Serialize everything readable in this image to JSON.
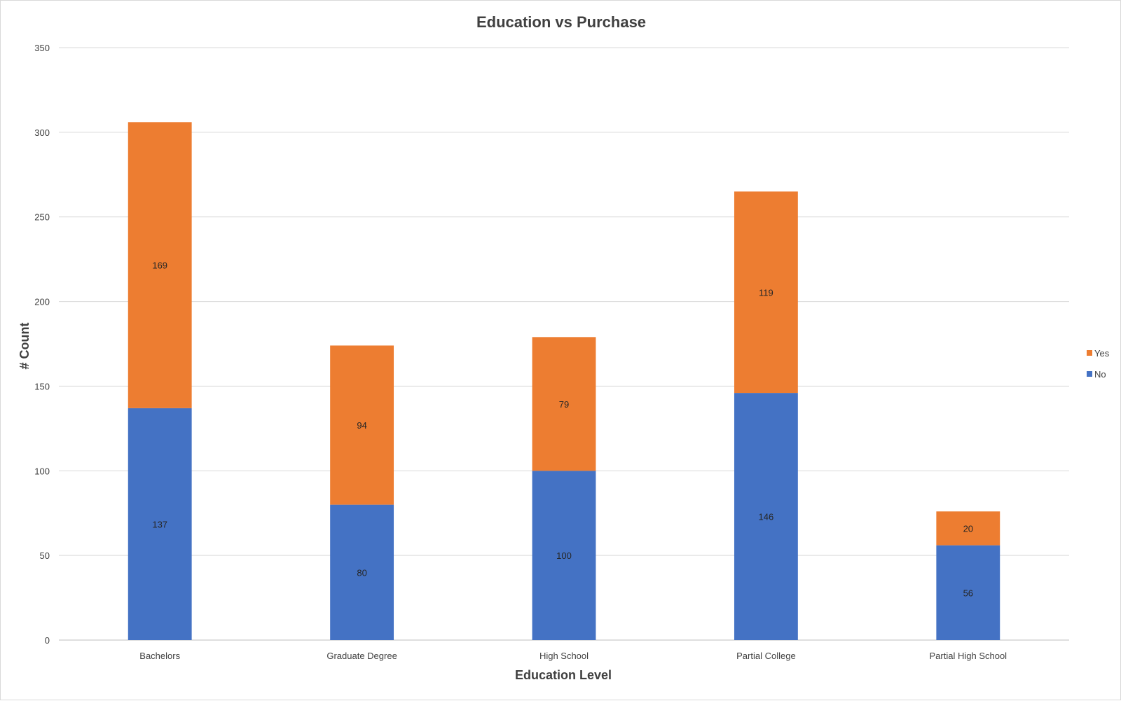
{
  "chart_data": {
    "type": "bar",
    "stacked": true,
    "title": "Education vs Purchase",
    "xlabel": "Education Level",
    "ylabel": "# Count",
    "categories": [
      "Bachelors",
      "Graduate Degree",
      "High School",
      "Partial College",
      "Partial High School"
    ],
    "series": [
      {
        "name": "No",
        "color": "#4472C4",
        "values": [
          137,
          80,
          100,
          146,
          56
        ]
      },
      {
        "name": "Yes",
        "color": "#ED7D31",
        "values": [
          169,
          94,
          79,
          119,
          20
        ]
      }
    ],
    "ylim": [
      0,
      350
    ],
    "yticks": [
      "0",
      "50",
      "100",
      "150",
      "200",
      "250",
      "300",
      "350"
    ],
    "grid": true,
    "legend_position": "right"
  }
}
